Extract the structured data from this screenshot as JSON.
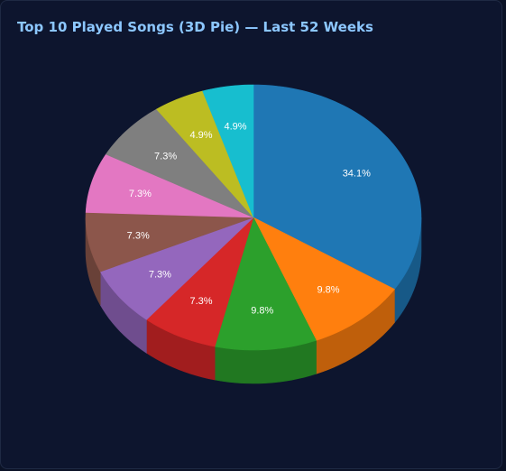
{
  "title": "Top 10 Played Songs (3D Pie) — Last 52 Weeks",
  "colors": {
    "background": "#0d152e",
    "title": "#8cc7ff",
    "label": "#ffffff"
  },
  "chart_data": {
    "type": "pie",
    "title": "Top 10 Played Songs (3D Pie) — Last 52 Weeks",
    "style": "3d",
    "start_angle": "12 o'clock, clockwise",
    "legend": "none",
    "slices": [
      {
        "label": "34.1%",
        "value": 34.1,
        "color": "#1f77b4"
      },
      {
        "label": "9.8%",
        "value": 9.8,
        "color": "#ff7f0e"
      },
      {
        "label": "9.8%",
        "value": 9.8,
        "color": "#2ca02c"
      },
      {
        "label": "7.3%",
        "value": 7.3,
        "color": "#d62728"
      },
      {
        "label": "7.3%",
        "value": 7.3,
        "color": "#9467bd"
      },
      {
        "label": "7.3%",
        "value": 7.3,
        "color": "#8c564b"
      },
      {
        "label": "7.3%",
        "value": 7.3,
        "color": "#e377c2"
      },
      {
        "label": "7.3%",
        "value": 7.3,
        "color": "#7f7f7f"
      },
      {
        "label": "4.9%",
        "value": 4.9,
        "color": "#bcbd22"
      },
      {
        "label": "4.9%",
        "value": 4.9,
        "color": "#17becf"
      }
    ]
  }
}
